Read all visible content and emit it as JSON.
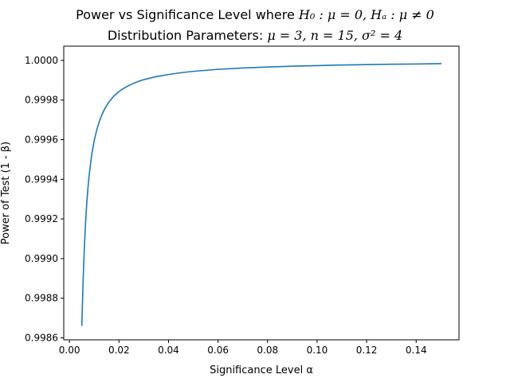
{
  "chart_data": {
    "type": "line",
    "title": "Power vs Significance Level where H₀ : μ = 0, Hₐ : μ ≠ 0",
    "subtitle": "Distribution Parameters: μ = 3, n = 15, σ² = 4",
    "title_parts": {
      "line1_prefix": "Power vs Significance Level where ",
      "line1_math": "H₀ : μ = 0, Hₐ : μ ≠ 0",
      "line2_prefix": "Distribution Parameters: ",
      "line2_math": "μ = 3, n = 15, σ² = 4"
    },
    "xlabel": "Significance Level α",
    "ylabel": "Power of Test (1 - β)",
    "xlim": [
      -0.0023,
      0.1573
    ],
    "ylim": [
      0.99859,
      1.000072
    ],
    "xticks": [
      0.0,
      0.02,
      0.04,
      0.06,
      0.08,
      0.1,
      0.12,
      0.14
    ],
    "xtick_labels": [
      "0.00",
      "0.02",
      "0.04",
      "0.06",
      "0.08",
      "0.10",
      "0.12",
      "0.14"
    ],
    "yticks": [
      0.9986,
      0.9988,
      0.999,
      0.9992,
      0.9994,
      0.9996,
      0.9998,
      1.0
    ],
    "ytick_labels": [
      "0.9986",
      "0.9988",
      "0.9990",
      "0.9992",
      "0.9994",
      "0.9996",
      "0.9998",
      "1.0000"
    ],
    "grid": false,
    "line_color": "#1f77b4",
    "x": [
      0.005,
      0.0055,
      0.006,
      0.0065,
      0.007,
      0.0075,
      0.008,
      0.009,
      0.01,
      0.011,
      0.012,
      0.013,
      0.014,
      0.015,
      0.016,
      0.018,
      0.02,
      0.022,
      0.025,
      0.028,
      0.03,
      0.035,
      0.04,
      0.045,
      0.05,
      0.055,
      0.06,
      0.07,
      0.08,
      0.09,
      0.1,
      0.11,
      0.12,
      0.13,
      0.14,
      0.15
    ],
    "y": [
      0.998663,
      0.99888,
      0.99905,
      0.99918,
      0.99928,
      0.99936,
      0.999425,
      0.999525,
      0.999595,
      0.999648,
      0.99969,
      0.999723,
      0.99975,
      0.999772,
      0.999791,
      0.999821,
      0.999843,
      0.99986,
      0.99988,
      0.999895,
      0.999903,
      0.999918,
      0.999929,
      0.999938,
      0.999945,
      0.99995,
      0.999955,
      0.999962,
      0.999967,
      0.999971,
      0.999974,
      0.999977,
      0.999979,
      0.999981,
      0.999982,
      0.999984
    ]
  }
}
